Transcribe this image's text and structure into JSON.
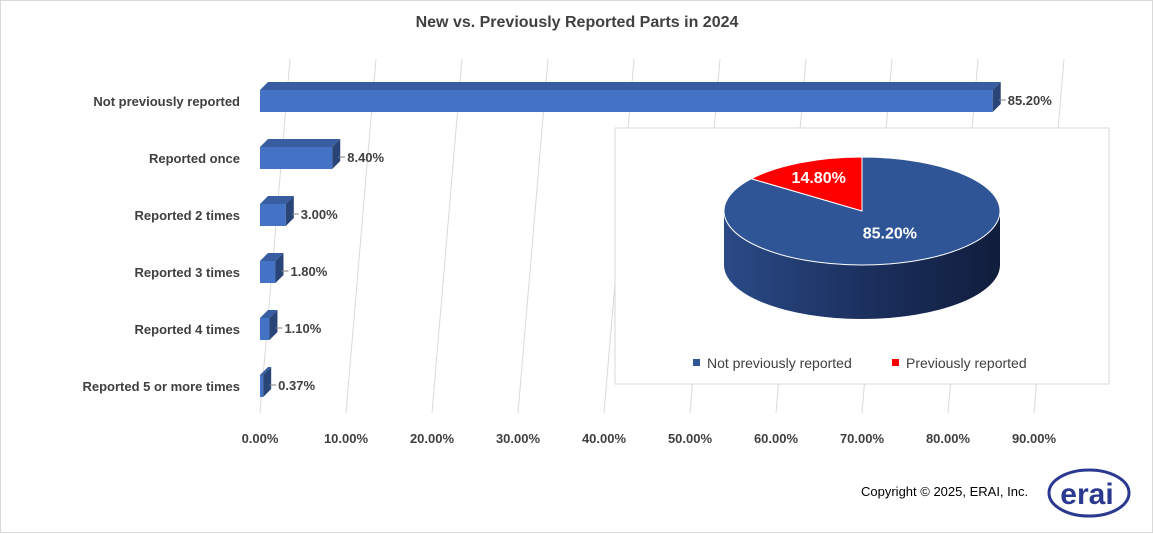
{
  "chart_data": [
    {
      "type": "bar",
      "orientation": "horizontal",
      "title": "New vs. Previously Reported Parts in 2024",
      "categories": [
        "Not previously reported",
        "Reported once",
        "Reported 2 times",
        "Reported 3 times",
        "Reported 4 times",
        "Reported 5 or more times"
      ],
      "values": [
        85.2,
        8.4,
        3.0,
        1.8,
        1.1,
        0.37
      ],
      "data_labels": [
        "85.20%",
        "8.40%",
        "3.00%",
        "1.80%",
        "1.10%",
        "0.37%"
      ],
      "xlim": [
        0,
        90
      ],
      "x_ticks": [
        "0.00%",
        "10.00%",
        "20.00%",
        "30.00%",
        "40.00%",
        "50.00%",
        "60.00%",
        "70.00%",
        "80.00%",
        "90.00%"
      ],
      "grid": "vertical",
      "color": "#4472c4",
      "legend": "none",
      "style": "3d"
    },
    {
      "type": "pie",
      "slices": [
        {
          "name": "Not previously reported",
          "value": 85.2,
          "label": "85.20%",
          "color": "#2f5597"
        },
        {
          "name": "Previously reported",
          "value": 14.8,
          "label": "14.80%",
          "color": "#ff0000"
        }
      ],
      "legend": "bottom",
      "style": "3d"
    }
  ],
  "footer": {
    "copyright": "Copyright © 2025, ERAI, Inc.",
    "logo_text": "erai"
  }
}
